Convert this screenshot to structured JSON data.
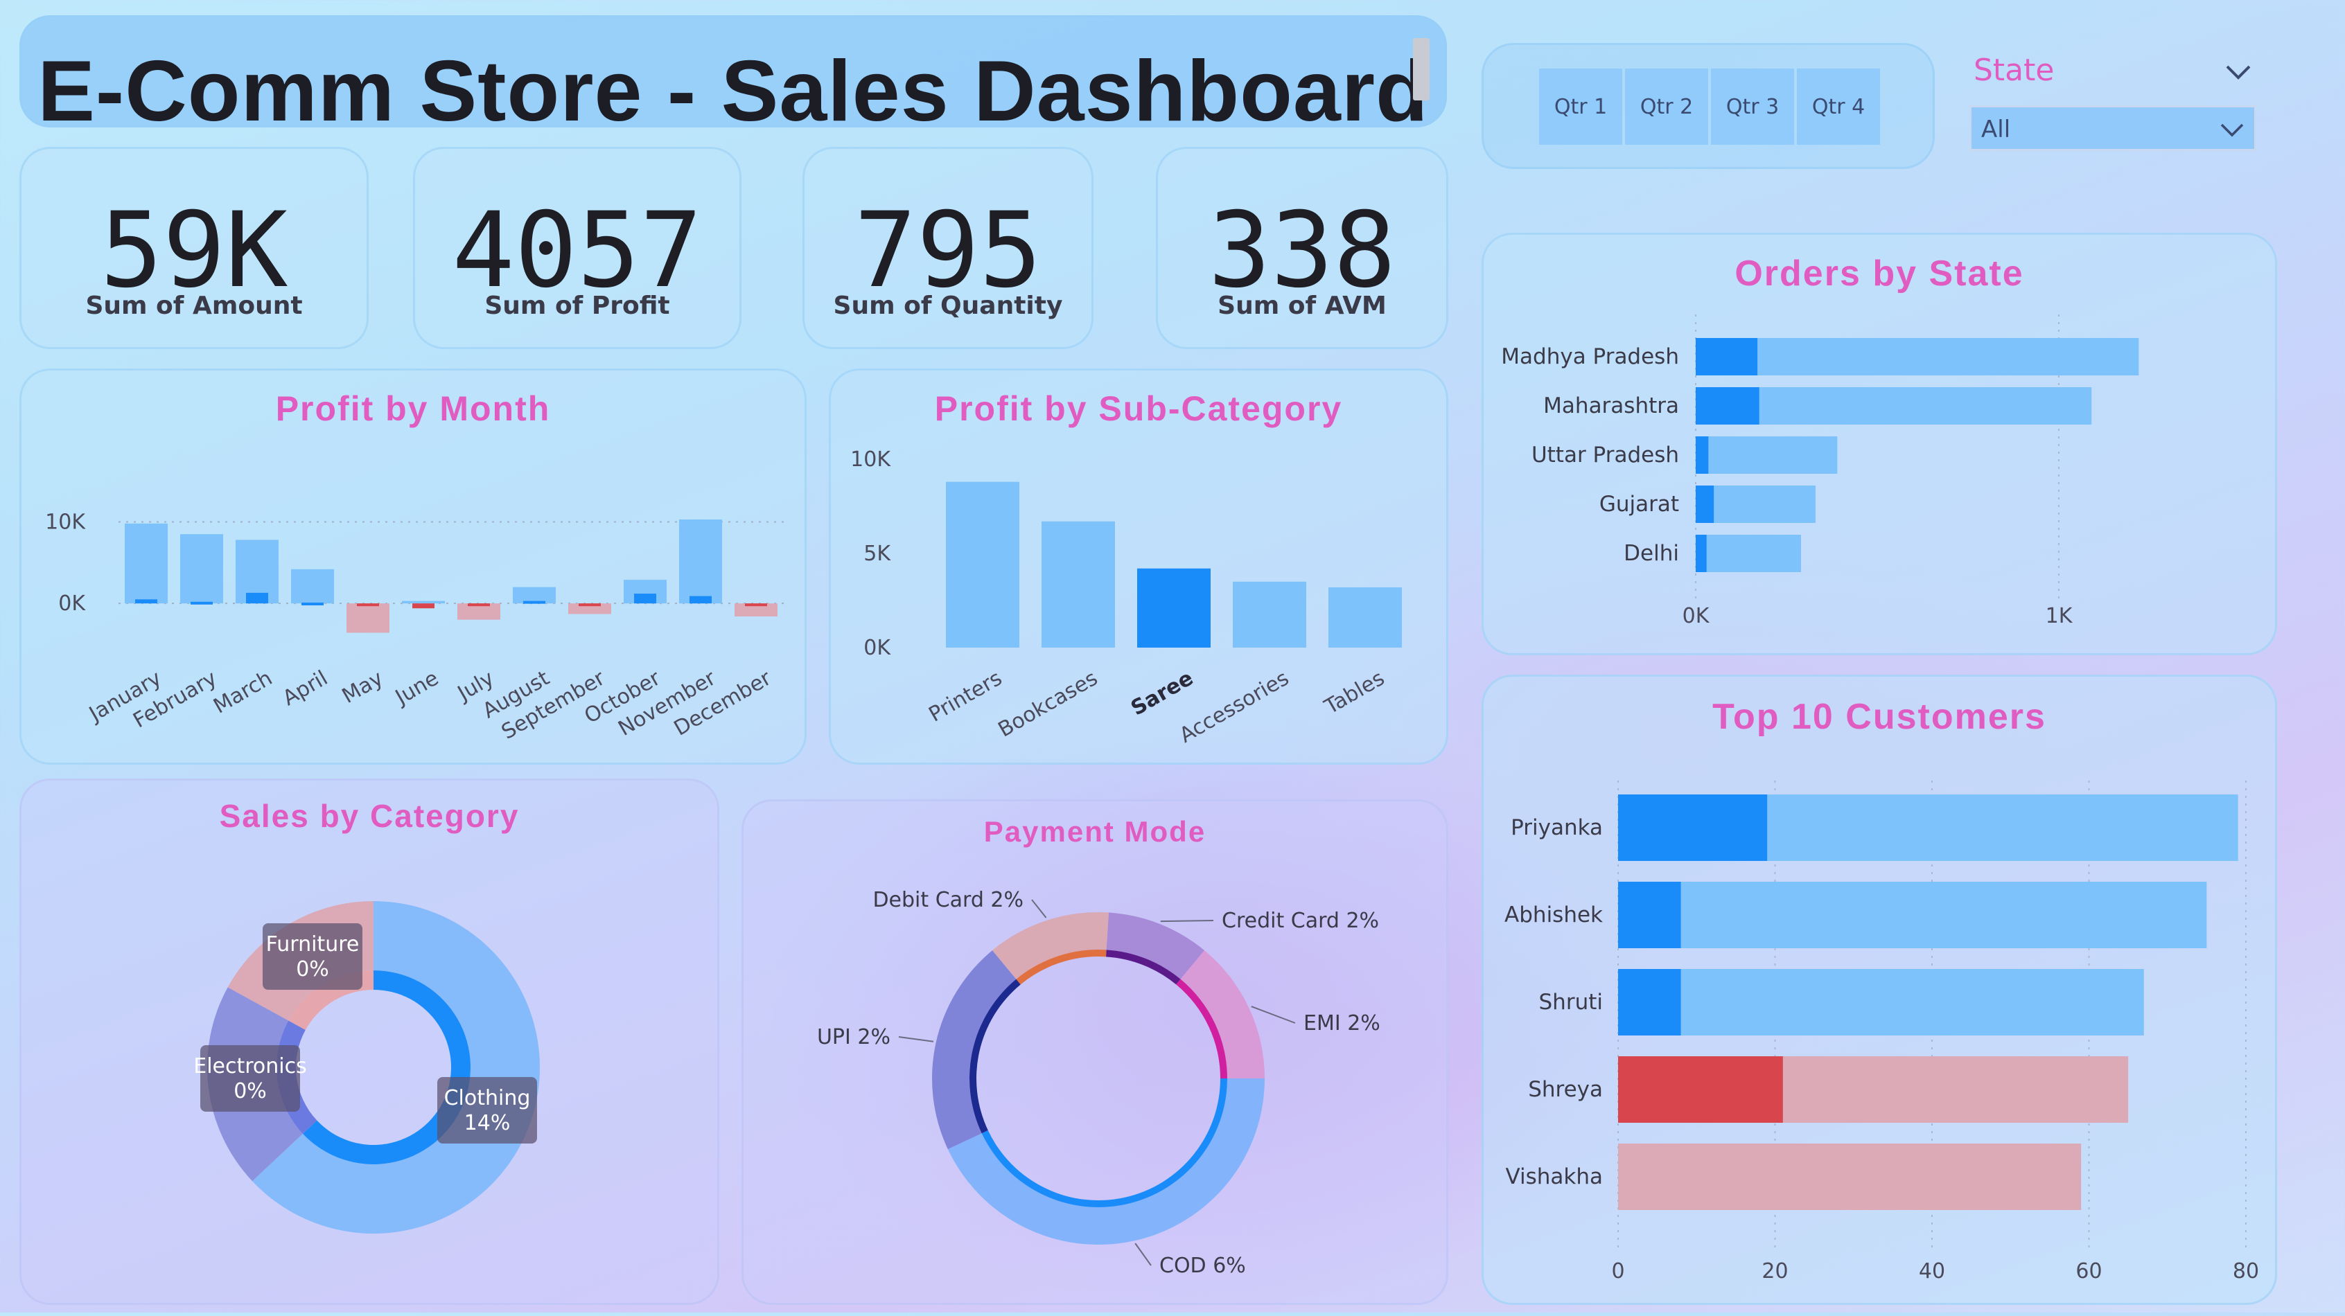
{
  "dashboard": {
    "title": "E-Comm Store - Sales Dashboard"
  },
  "kpis": [
    {
      "value": "59K",
      "label": "Sum of Amount"
    },
    {
      "value": "4057",
      "label": "Sum of Profit"
    },
    {
      "value": "795",
      "label": "Sum of Quantity"
    },
    {
      "value": "338",
      "label": "Sum of AVM"
    }
  ],
  "filters": {
    "quarters": [
      "Qtr 1",
      "Qtr 2",
      "Qtr 3",
      "Qtr 4"
    ],
    "state_label": "State",
    "state_value": "All"
  },
  "colors": {
    "light_blue": "#7ec2fb",
    "blue": "#1a8cfa",
    "pink": "#dca9b6",
    "red": "#d8454c",
    "title_pink": "#e05cc0"
  },
  "chart_data": [
    {
      "id": "profit_by_month",
      "type": "bar",
      "title": "Profit by Month",
      "categories": [
        "January",
        "February",
        "March",
        "April",
        "May",
        "June",
        "July",
        "August",
        "September",
        "October",
        "November",
        "December"
      ],
      "series": [
        {
          "values": [
            9800,
            8500,
            7800,
            4200,
            -3600,
            300,
            -2000,
            2000,
            -1300,
            2900,
            10300,
            -1600
          ]
        },
        {
          "values": [
            500,
            200,
            1300,
            100,
            -300,
            -600,
            -300,
            300,
            -300,
            1200,
            900,
            -300
          ]
        }
      ],
      "yticks": [
        "10K",
        "0K"
      ],
      "ylim": [
        -5000,
        12000
      ]
    },
    {
      "id": "profit_by_subcategory",
      "type": "bar",
      "title": "Profit by Sub-Category",
      "categories": [
        "Printers",
        "Bookcases",
        "Saree",
        "Accessories",
        "Tables"
      ],
      "values": [
        8800,
        6700,
        4200,
        3500,
        3200
      ],
      "highlight": "Saree",
      "yticks": [
        "10K",
        "5K",
        "0K"
      ],
      "ylim": [
        0,
        10000
      ]
    },
    {
      "id": "orders_by_state",
      "type": "bar",
      "orientation": "horizontal",
      "title": "Orders by State",
      "categories": [
        "Madhya Pradesh",
        "Maharashtra",
        "Uttar Pradesh",
        "Gujarat",
        "Delhi"
      ],
      "series": [
        {
          "values": [
            1220,
            1090,
            390,
            330,
            290
          ]
        },
        {
          "values": [
            170,
            175,
            35,
            50,
            30
          ]
        }
      ],
      "xticks": [
        "0K",
        "1K"
      ],
      "xlim": [
        0,
        1500
      ]
    },
    {
      "id": "sales_by_category",
      "type": "pie",
      "title": "Sales by Category",
      "slices": [
        {
          "label": "Clothing",
          "pct": "14%",
          "share": 0.63
        },
        {
          "label": "Electronics",
          "pct": "0%",
          "share": 0.2
        },
        {
          "label": "Furniture",
          "pct": "0%",
          "share": 0.17
        }
      ]
    },
    {
      "id": "payment_mode",
      "type": "pie",
      "title": "Payment Mode",
      "slices": [
        {
          "label": "COD 6%",
          "share": 0.43
        },
        {
          "label": "UPI 2%",
          "share": 0.21
        },
        {
          "label": "Debit Card 2%",
          "share": 0.12
        },
        {
          "label": "Credit Card 2%",
          "share": 0.1
        },
        {
          "label": "EMI 2%",
          "share": 0.14
        }
      ]
    },
    {
      "id": "top_customers",
      "type": "bar",
      "orientation": "horizontal",
      "title": "Top 10 Customers",
      "categories": [
        "Priyanka",
        "Abhishek",
        "Shruti",
        "Shreya",
        "Vishakha"
      ],
      "series": [
        {
          "values": [
            79,
            75,
            67,
            65,
            59
          ]
        },
        {
          "values": [
            19,
            8,
            8,
            21,
            0
          ]
        }
      ],
      "xticks": [
        "0",
        "20",
        "40",
        "60",
        "80"
      ],
      "xlim": [
        0,
        80
      ]
    }
  ]
}
